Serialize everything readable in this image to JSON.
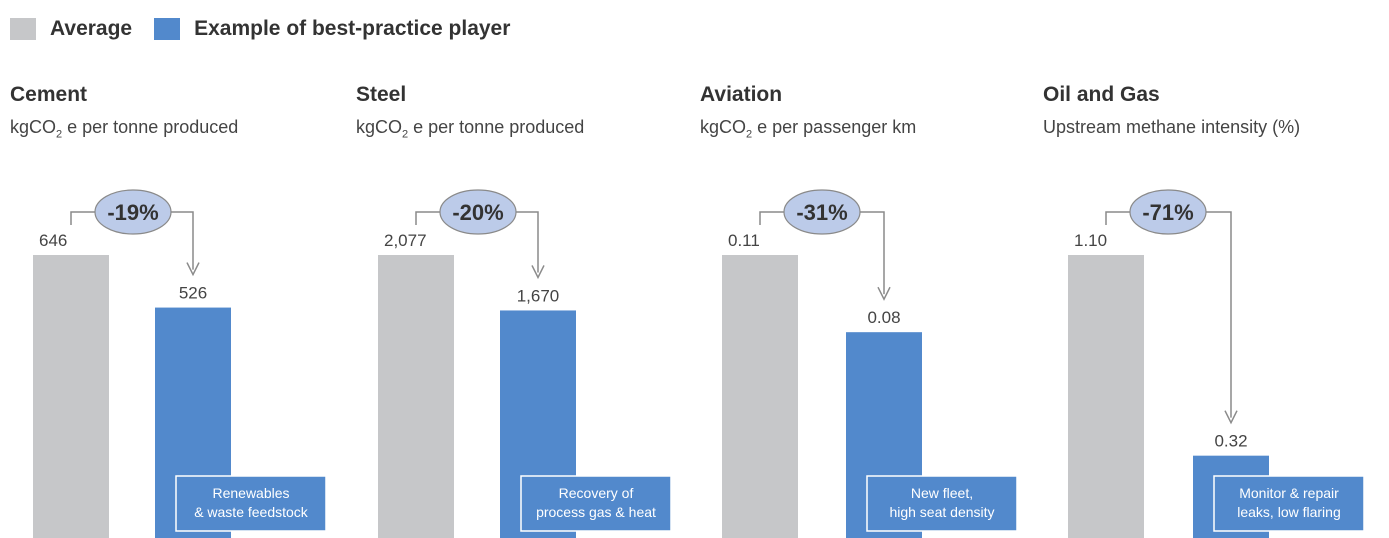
{
  "legend": {
    "average_label": "Average",
    "best_label": "Example of best-practice player",
    "average_color": "#c6c7c9",
    "best_color": "#5289cc"
  },
  "chart_data": [
    {
      "type": "bar",
      "title": "Cement",
      "unit_main": "kgCO",
      "unit_sub": "2",
      "unit_rest": " e per tonne produced",
      "categories": [
        "Average",
        "Example of best-practice player"
      ],
      "values": [
        646,
        526
      ],
      "value_labels": [
        "646",
        "526"
      ],
      "change_label": "-19%",
      "note_lines": [
        "Renewables",
        "& waste feedstock"
      ]
    },
    {
      "type": "bar",
      "title": "Steel",
      "unit_main": "kgCO",
      "unit_sub": "2",
      "unit_rest": " e per tonne produced",
      "categories": [
        "Average",
        "Example of best-practice player"
      ],
      "values": [
        2077,
        1670
      ],
      "value_labels": [
        "2,077",
        "1,670"
      ],
      "change_label": "-20%",
      "note_lines": [
        "Recovery of",
        "process gas & heat"
      ]
    },
    {
      "type": "bar",
      "title": "Aviation",
      "unit_main": "kgCO",
      "unit_sub": "2",
      "unit_rest": " e per passenger km",
      "categories": [
        "Average",
        "Example of best-practice player"
      ],
      "values": [
        0.11,
        0.08
      ],
      "value_labels": [
        "0.11",
        "0.08"
      ],
      "change_label": "-31%",
      "note_lines": [
        "New fleet,",
        "high seat density"
      ]
    },
    {
      "type": "bar",
      "title": "Oil and Gas",
      "unit_main": "Upstream methane intensity (%)",
      "unit_sub": "",
      "unit_rest": "",
      "categories": [
        "Average",
        "Example of best-practice player"
      ],
      "values": [
        1.1,
        0.32
      ],
      "value_labels": [
        "1.10",
        "0.32"
      ],
      "change_label": "-71%",
      "note_lines": [
        "Monitor & repair",
        "leaks, low flaring"
      ]
    }
  ]
}
